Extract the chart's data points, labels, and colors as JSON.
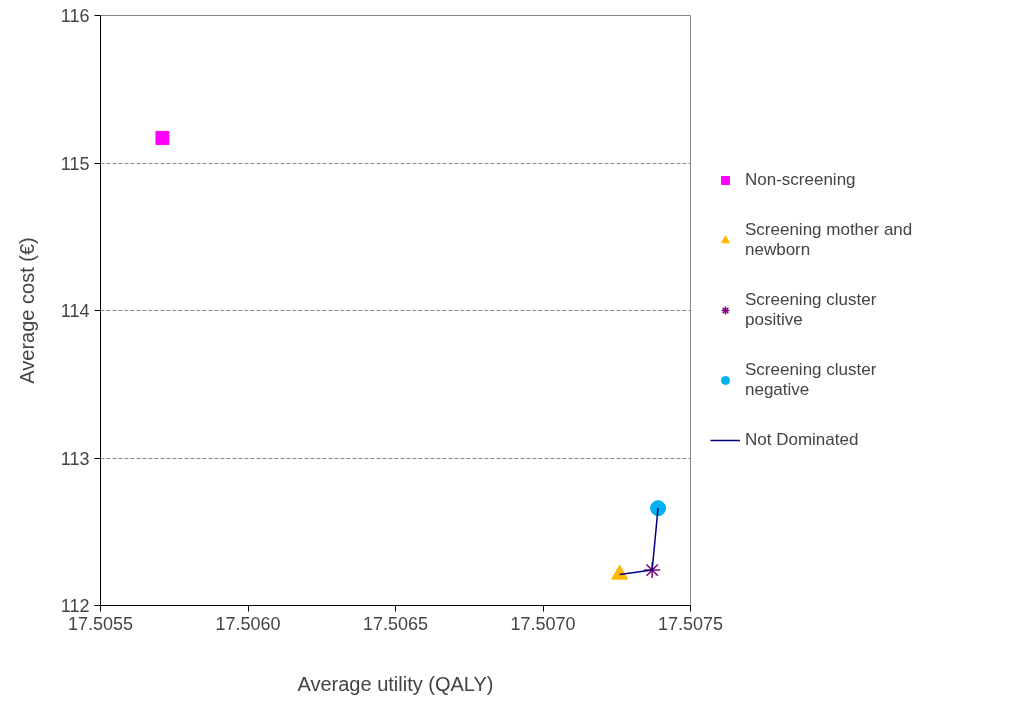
{
  "chart_data": {
    "type": "scatter",
    "xlabel": "Average utility (QALY)",
    "ylabel": "Average cost (€)",
    "xlim": [
      17.5055,
      17.5075
    ],
    "xticks": [
      {
        "value": 17.5055,
        "label": "17.5055"
      },
      {
        "value": 17.506,
        "label": "17.5060"
      },
      {
        "value": 17.5065,
        "label": "17.5065"
      },
      {
        "value": 17.507,
        "label": "17.5070"
      },
      {
        "value": 17.5075,
        "label": "17.5075"
      }
    ],
    "ylim": [
      112,
      116
    ],
    "yticks": [
      112,
      113,
      114,
      115,
      116
    ],
    "grid": "y",
    "legend": "right",
    "series": [
      {
        "name": "Non-screening",
        "color": "#ff00ff",
        "marker": "square",
        "x": [
          17.50571
        ],
        "values": [
          115.17
        ]
      },
      {
        "name": "Screening mother and newborn",
        "color": "#ffb800",
        "marker": "triangle",
        "x": [
          17.50726
        ],
        "values": [
          112.21
        ]
      },
      {
        "name": "Screening cluster positive",
        "color": "#800080",
        "marker": "cross",
        "x": [
          17.50737
        ],
        "values": [
          112.24
        ]
      },
      {
        "name": "Screening cluster negative",
        "color": "#00b0f0",
        "marker": "circle",
        "x": [
          17.50739
        ],
        "values": [
          112.66
        ]
      },
      {
        "name": "Not Dominated",
        "type": "line",
        "color": "#000080",
        "marker": "none",
        "x": [
          17.50726,
          17.50737,
          17.50739
        ],
        "values": [
          112.21,
          112.24,
          112.66
        ]
      }
    ]
  }
}
